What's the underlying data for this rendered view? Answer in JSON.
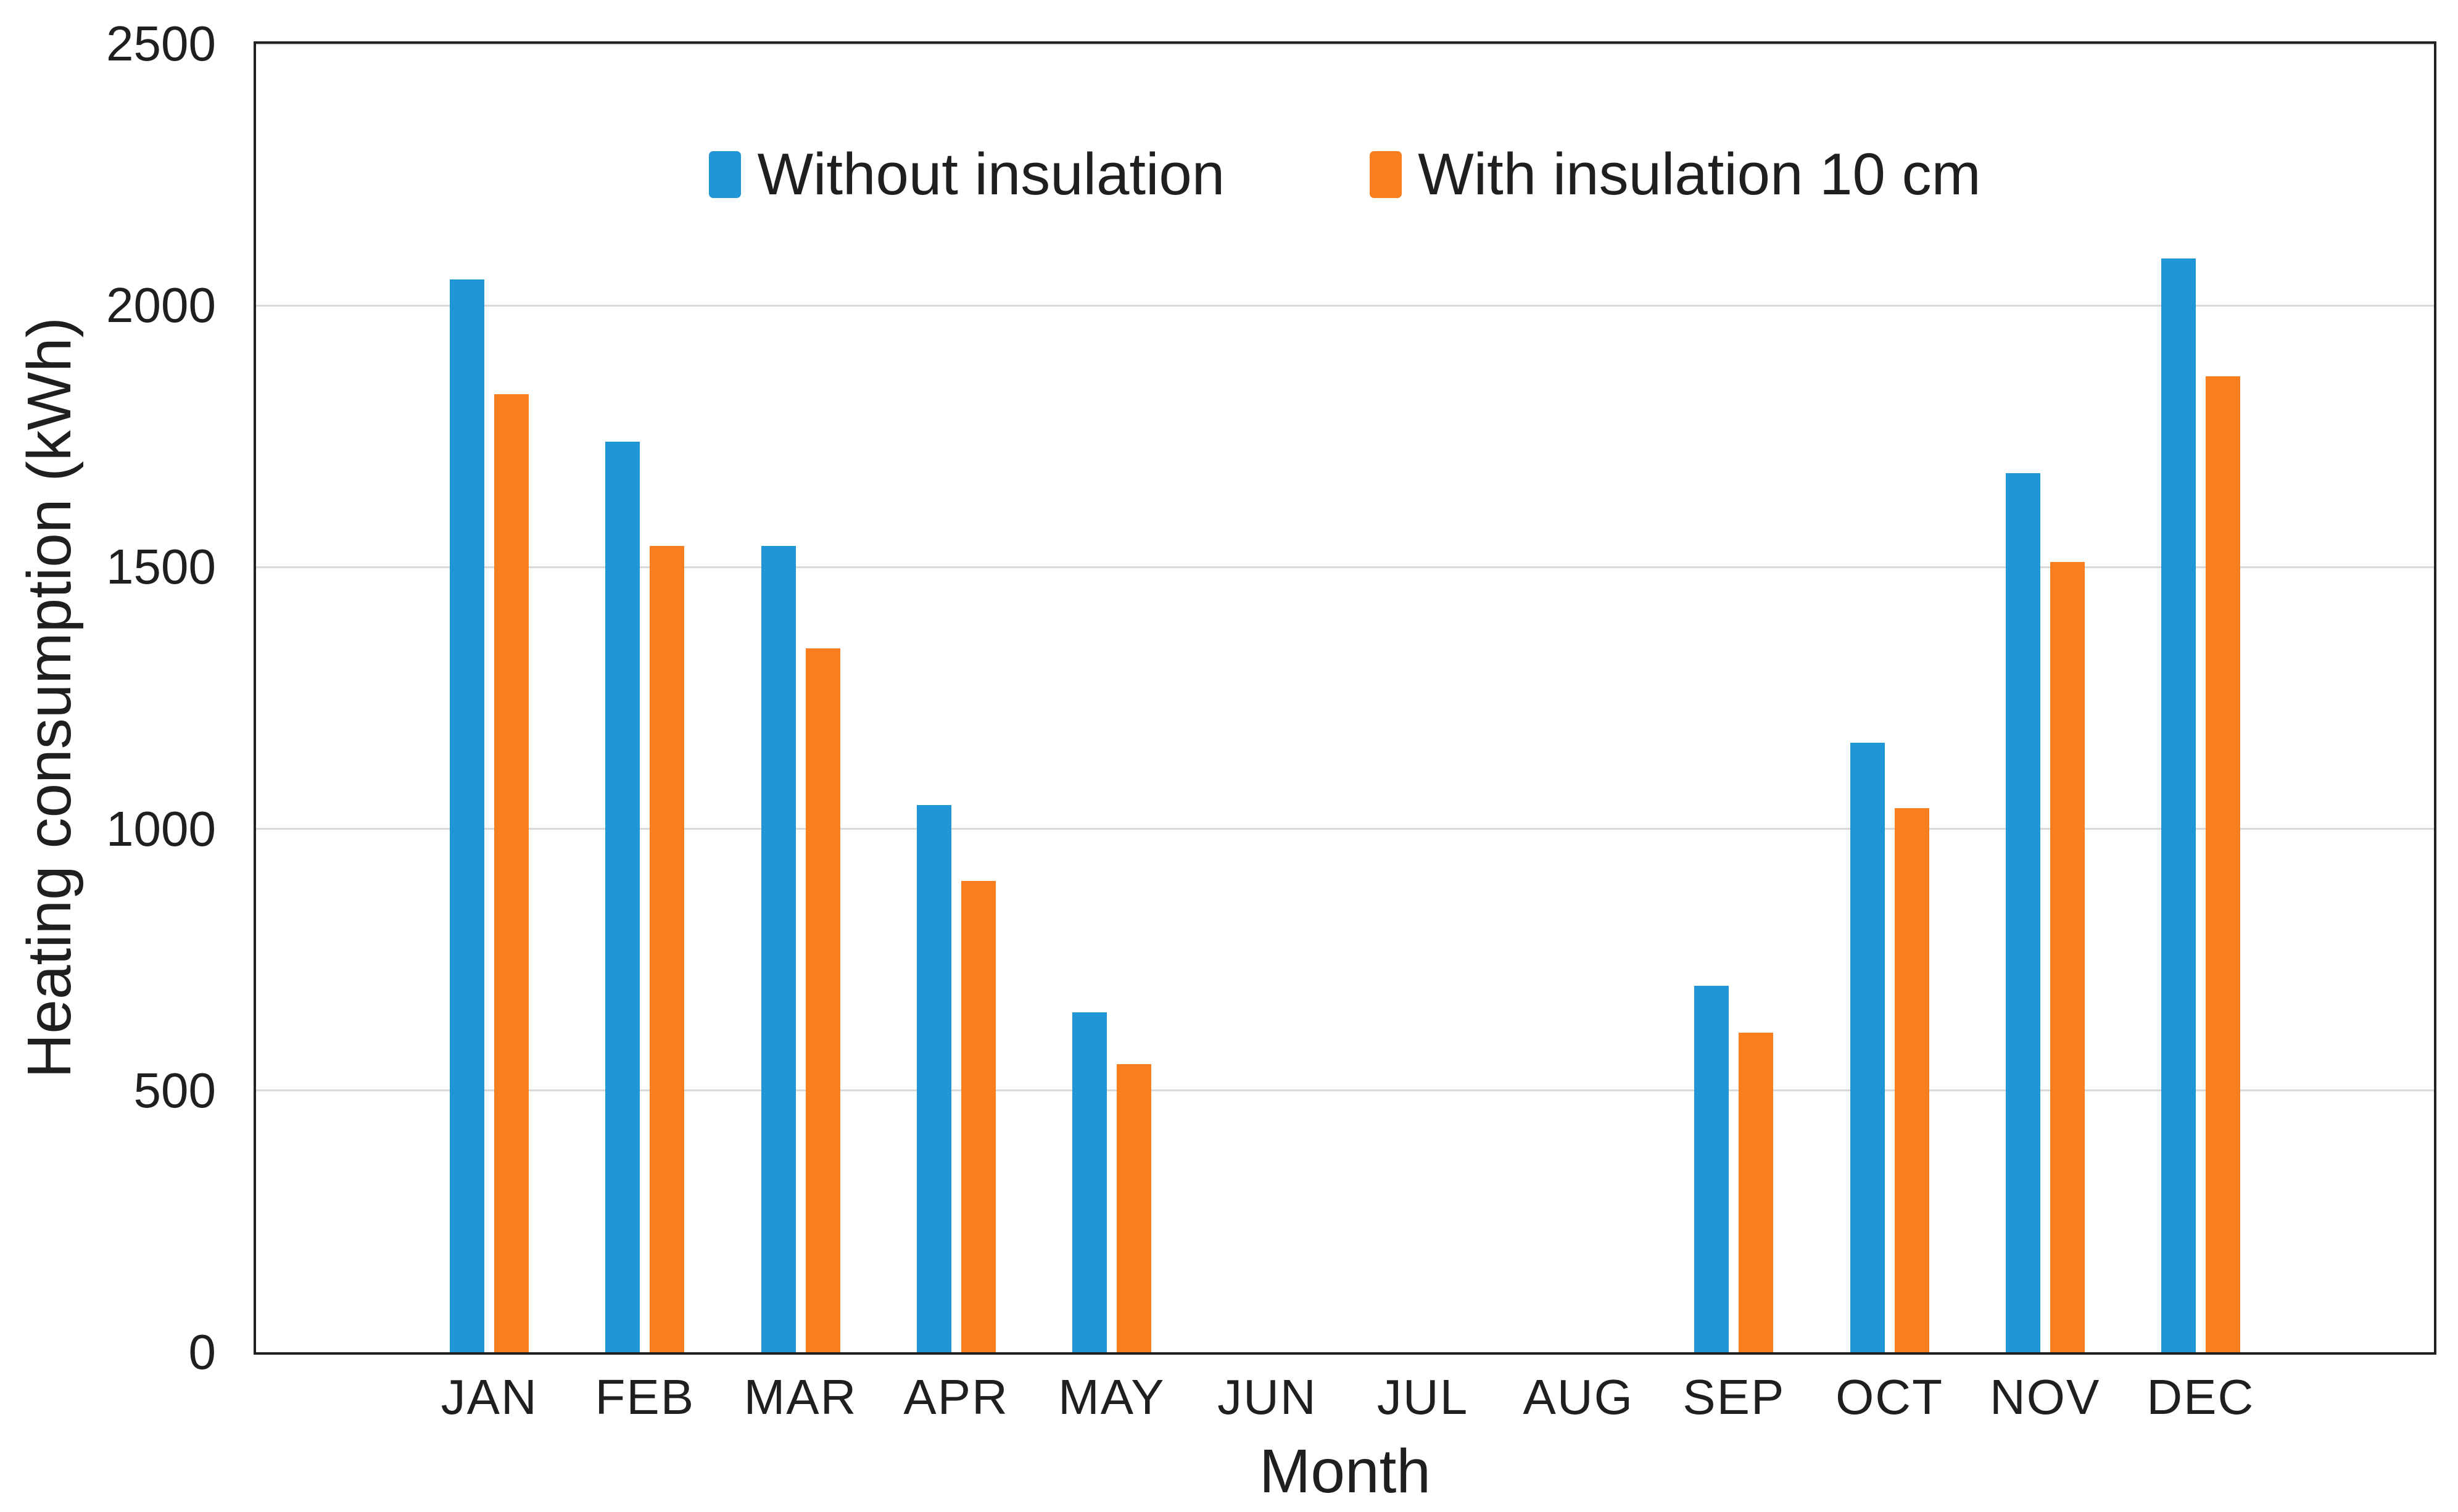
{
  "chart_data": {
    "type": "bar",
    "title": "",
    "categories": [
      "JAN",
      "FEB",
      "MAR",
      "APR",
      "MAY",
      "JUN",
      "JUL",
      "AUG",
      "SEP",
      "OCT",
      "NOV",
      "DEC"
    ],
    "series": [
      {
        "name": "Without insulation",
        "color": "#2196d6",
        "values": [
          2050,
          1740,
          1540,
          1045,
          650,
          0,
          0,
          0,
          700,
          1165,
          1680,
          2090
        ]
      },
      {
        "name": "With insulation 10 cm",
        "color": "#f87e20",
        "values": [
          1830,
          1540,
          1345,
          900,
          550,
          0,
          0,
          0,
          610,
          1040,
          1510,
          1865
        ]
      }
    ],
    "xlabel": "Month",
    "ylabel": "Heating consumption (kWh)",
    "ylim": [
      0,
      2500
    ],
    "yticks": [
      0,
      500,
      1000,
      1500,
      2000,
      2500
    ],
    "grid": "horizontal-only",
    "legend_position": "top-center-inside"
  },
  "style": {
    "gridline_color": "#d9d9d9",
    "axis_border_color": "#212121",
    "text_color": "#1f1f1f",
    "background": "#ffffff"
  }
}
